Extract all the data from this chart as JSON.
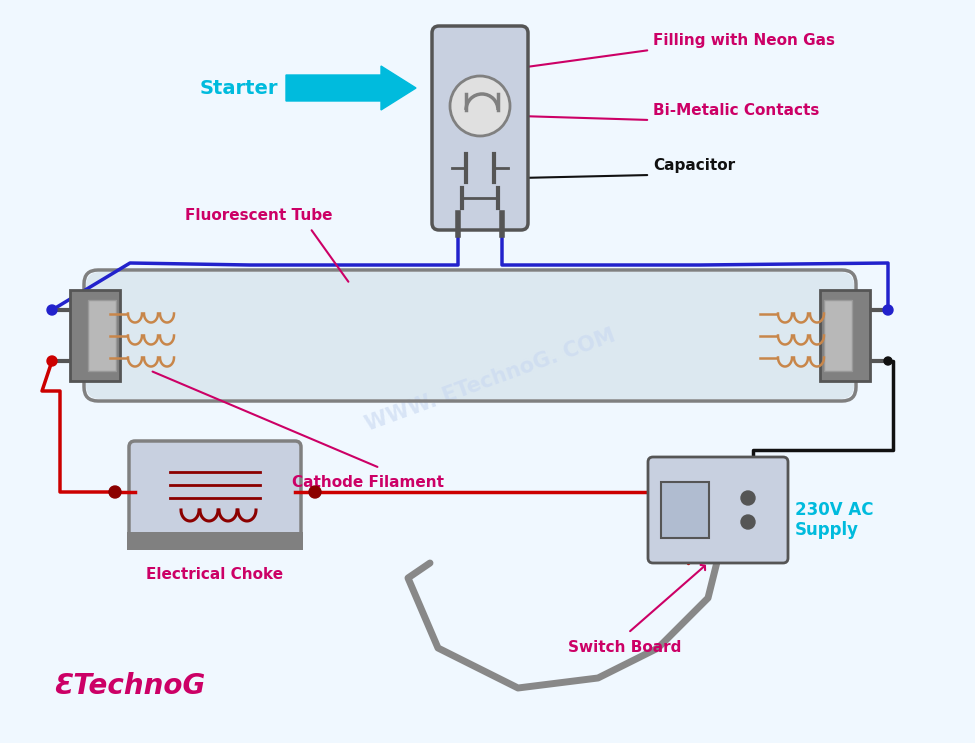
{
  "bg_color": "#f0f8ff",
  "blue_wire_color": "#2222cc",
  "red_wire_color": "#cc0000",
  "gray_color": "#808080",
  "dark_gray": "#555555",
  "black_color": "#111111",
  "cyan_color": "#00bbdd",
  "magenta_color": "#cc0066",
  "filament_color": "#c8864a",
  "dark_red": "#8b0000",
  "watermark_color": "#c8d8f0",
  "labels": {
    "starter": "Starter",
    "neon_gas": "Filling with Neon Gas",
    "bimetalic": "Bi-Metalic Contacts",
    "capacitor": "Capacitor",
    "fluorescent_tube": "Fluorescent Tube",
    "cathode_filament": "Cathode Filament",
    "electrical_choke": "Electrical Choke",
    "switch_board": "Switch Board",
    "ac_supply": "230V AC\nSupply",
    "watermark": "WWW. ETechnoG. COM",
    "brand_e": "ƐTechnoG"
  }
}
